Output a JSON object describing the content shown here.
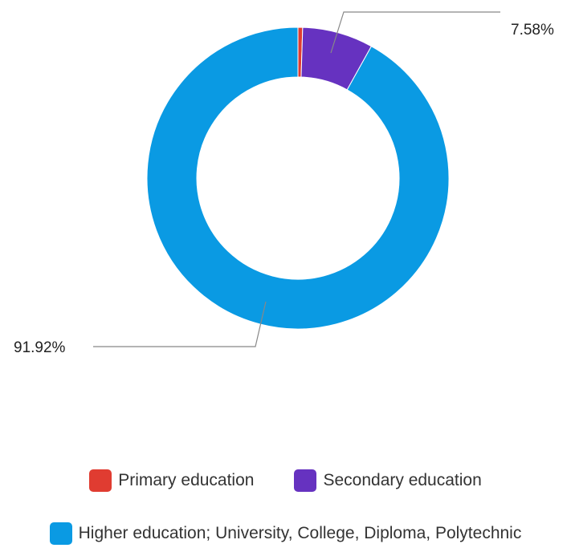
{
  "chart_data": {
    "type": "pie",
    "donut": true,
    "categories": [
      "Primary education",
      "Secondary education",
      "Higher education; University, College, Diploma, Polytechnic"
    ],
    "values": [
      0.5,
      7.58,
      91.92
    ],
    "colors": [
      "#e03c31",
      "#6632c0",
      "#0a9ae3"
    ],
    "data_labels": [
      "",
      "7.58%",
      "91.92%"
    ],
    "legend_position": "bottom"
  }
}
